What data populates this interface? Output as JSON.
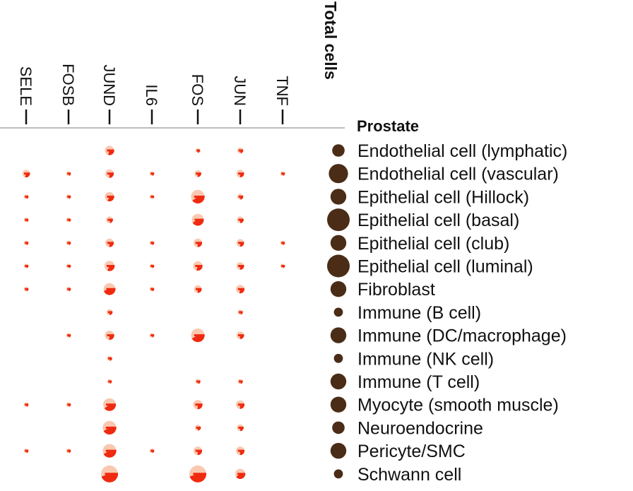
{
  "chart_data": {
    "type": "dot-pie-matrix",
    "tissue": "Prostate",
    "total_label": "Total cells",
    "genes": [
      "SELE",
      "FOSB",
      "JUND",
      "IL6",
      "FOS",
      "JUN",
      "TNF"
    ],
    "cell_types": [
      "Endothelial cell (lymphatic)",
      "Endothelial cell (vascular)",
      "Epithelial cell (Hillock)",
      "Epithelial cell (basal)",
      "Epithelial cell (club)",
      "Epithelial cell (luminal)",
      "Fibroblast",
      "Immune (B cell)",
      "Immune (DC/macrophage)",
      "Immune (NK cell)",
      "Immune (T cell)",
      "Myocyte (smooth muscle)",
      "Neuroendocrine",
      "Pericyte/SMC",
      "Schwann cell"
    ],
    "total_cells": [
      2,
      4,
      3,
      5,
      3,
      5,
      3,
      1,
      3,
      1,
      3,
      3,
      2,
      3,
      1
    ],
    "pies": [
      [
        null,
        null,
        {
          "s": 0.55,
          "f": 0.3
        },
        null,
        {
          "s": 0.25,
          "f": 0.24
        },
        {
          "s": 0.35,
          "f": 0.22
        },
        null
      ],
      [
        {
          "s": 0.45,
          "f": 0.3
        },
        {
          "s": 0.25,
          "f": 0.2
        },
        {
          "s": 0.5,
          "f": 0.26
        },
        {
          "s": 0.25,
          "f": 0.2
        },
        {
          "s": 0.4,
          "f": 0.26
        },
        {
          "s": 0.45,
          "f": 0.26
        },
        {
          "s": 0.25,
          "f": 0.2
        }
      ],
      [
        {
          "s": 0.25,
          "f": 0.2
        },
        {
          "s": 0.25,
          "f": 0.2
        },
        {
          "s": 0.55,
          "f": 0.32
        },
        {
          "s": 0.25,
          "f": 0.15
        },
        {
          "s": 0.8,
          "f": 0.4
        },
        {
          "s": 0.35,
          "f": 0.24
        },
        null
      ],
      [
        {
          "s": 0.25,
          "f": 0.2
        },
        {
          "s": 0.25,
          "f": 0.18
        },
        {
          "s": 0.4,
          "f": 0.22
        },
        null,
        {
          "s": 0.7,
          "f": 0.42
        },
        {
          "s": 0.4,
          "f": 0.25
        },
        null
      ],
      [
        {
          "s": 0.25,
          "f": 0.2
        },
        {
          "s": 0.25,
          "f": 0.2
        },
        {
          "s": 0.5,
          "f": 0.26
        },
        {
          "s": 0.25,
          "f": 0.2
        },
        {
          "s": 0.5,
          "f": 0.26
        },
        {
          "s": 0.45,
          "f": 0.26
        },
        {
          "s": 0.25,
          "f": 0.2
        }
      ],
      [
        {
          "s": 0.25,
          "f": 0.2
        },
        {
          "s": 0.25,
          "f": 0.2
        },
        {
          "s": 0.6,
          "f": 0.32
        },
        {
          "s": 0.25,
          "f": 0.2
        },
        {
          "s": 0.55,
          "f": 0.3
        },
        {
          "s": 0.45,
          "f": 0.26
        },
        {
          "s": 0.25,
          "f": 0.2
        }
      ],
      [
        {
          "s": 0.25,
          "f": 0.2
        },
        {
          "s": 0.25,
          "f": 0.2
        },
        {
          "s": 0.7,
          "f": 0.45
        },
        {
          "s": 0.25,
          "f": 0.2
        },
        {
          "s": 0.45,
          "f": 0.26
        },
        {
          "s": 0.5,
          "f": 0.28
        },
        null
      ],
      [
        null,
        null,
        {
          "s": 0.35,
          "f": 0.24
        },
        null,
        null,
        {
          "s": 0.3,
          "f": 0.2
        },
        null
      ],
      [
        null,
        {
          "s": 0.25,
          "f": 0.2
        },
        {
          "s": 0.55,
          "f": 0.26
        },
        {
          "s": 0.25,
          "f": 0.2
        },
        {
          "s": 0.8,
          "f": 0.42
        },
        {
          "s": 0.45,
          "f": 0.26
        },
        null
      ],
      [
        null,
        null,
        {
          "s": 0.3,
          "f": 0.21
        },
        null,
        null,
        null,
        null
      ],
      [
        null,
        null,
        {
          "s": 0.25,
          "f": 0.2
        },
        null,
        {
          "s": 0.3,
          "f": 0.2
        },
        {
          "s": 0.3,
          "f": 0.2
        },
        null
      ],
      [
        {
          "s": 0.25,
          "f": 0.2
        },
        {
          "s": 0.25,
          "f": 0.2
        },
        {
          "s": 0.75,
          "f": 0.4
        },
        null,
        {
          "s": 0.55,
          "f": 0.26
        },
        {
          "s": 0.5,
          "f": 0.26
        },
        null
      ],
      [
        null,
        null,
        {
          "s": 0.8,
          "f": 0.42
        },
        null,
        {
          "s": 0.35,
          "f": 0.24
        },
        {
          "s": 0.4,
          "f": 0.25
        },
        null
      ],
      [
        {
          "s": 0.25,
          "f": 0.2
        },
        {
          "s": 0.25,
          "f": 0.2
        },
        {
          "s": 0.8,
          "f": 0.42
        },
        {
          "s": 0.25,
          "f": 0.2
        },
        {
          "s": 0.5,
          "f": 0.26
        },
        {
          "s": 0.5,
          "f": 0.26
        },
        null
      ],
      [
        null,
        null,
        {
          "s": 1.0,
          "f": 0.45
        },
        null,
        {
          "s": 1.0,
          "f": 0.45
        },
        {
          "s": 0.6,
          "f": 0.4
        },
        null
      ]
    ],
    "colors": {
      "pie_bg": "#f8c9b0",
      "pie_fg": "#f02a10",
      "total_dot": "#4a2c17",
      "axis_line": "#bdbdbd",
      "tick": "#111111"
    }
  }
}
